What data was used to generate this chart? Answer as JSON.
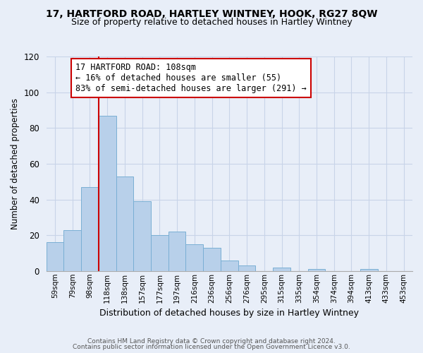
{
  "title1": "17, HARTFORD ROAD, HARTLEY WINTNEY, HOOK, RG27 8QW",
  "title2": "Size of property relative to detached houses in Hartley Wintney",
  "xlabel": "Distribution of detached houses by size in Hartley Wintney",
  "ylabel": "Number of detached properties",
  "bar_labels": [
    "59sqm",
    "79sqm",
    "98sqm",
    "118sqm",
    "138sqm",
    "157sqm",
    "177sqm",
    "197sqm",
    "216sqm",
    "236sqm",
    "256sqm",
    "276sqm",
    "295sqm",
    "315sqm",
    "335sqm",
    "354sqm",
    "374sqm",
    "394sqm",
    "413sqm",
    "433sqm",
    "453sqm"
  ],
  "bar_values": [
    16,
    23,
    47,
    87,
    53,
    39,
    20,
    22,
    15,
    13,
    6,
    3,
    0,
    2,
    0,
    1,
    0,
    0,
    1,
    0,
    0
  ],
  "bar_color": "#b8d0ea",
  "bar_edge_color": "#7aafd4",
  "vline_color": "#cc0000",
  "annotation_title": "17 HARTFORD ROAD: 108sqm",
  "annotation_line1": "← 16% of detached houses are smaller (55)",
  "annotation_line2": "83% of semi-detached houses are larger (291) →",
  "annotation_box_color": "white",
  "annotation_box_edge": "#cc0000",
  "ylim": [
    0,
    120
  ],
  "yticks": [
    0,
    20,
    40,
    60,
    80,
    100,
    120
  ],
  "footer1": "Contains HM Land Registry data © Crown copyright and database right 2024.",
  "footer2": "Contains public sector information licensed under the Open Government Licence v3.0.",
  "bg_color": "#e8eef8",
  "grid_color": "#c8d4e8",
  "title1_fontsize": 10,
  "title2_fontsize": 9
}
